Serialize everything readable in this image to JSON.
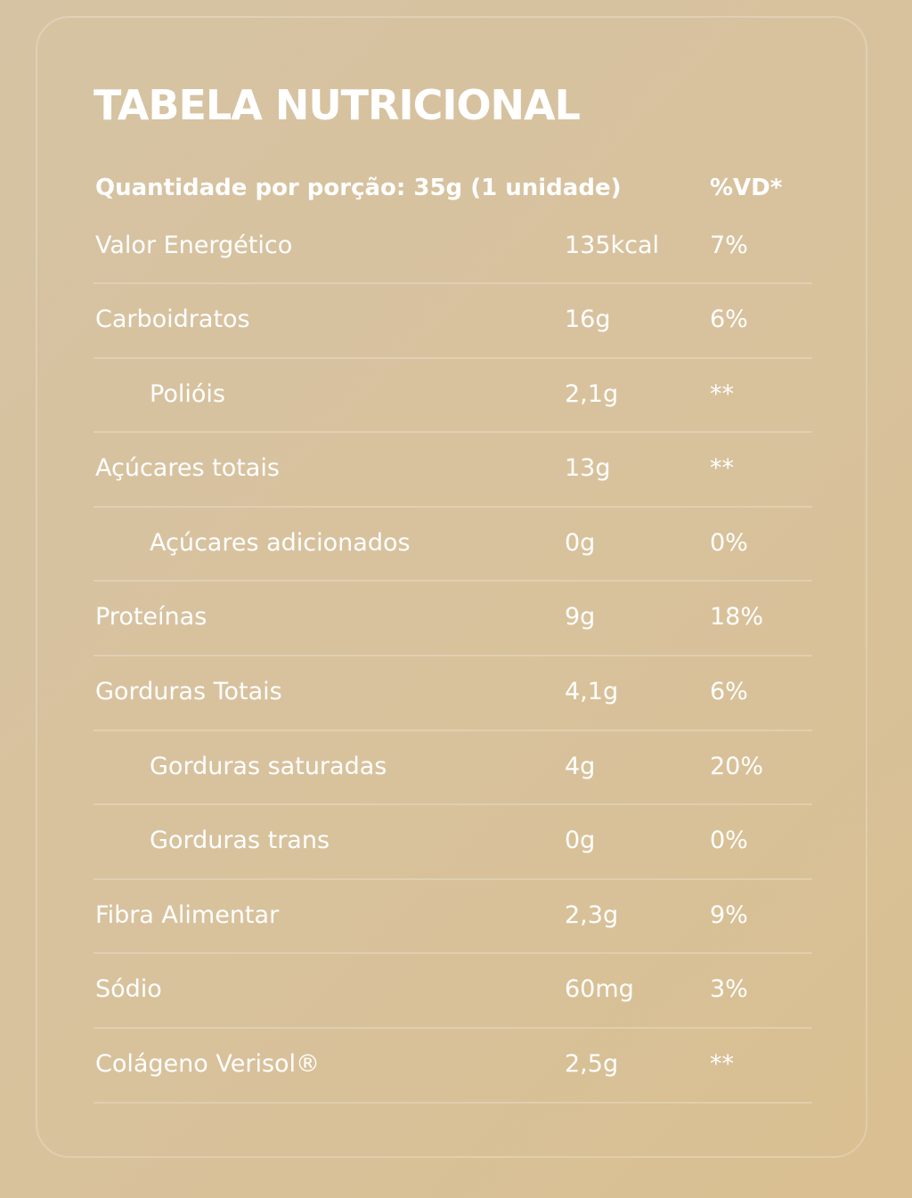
{
  "title": "TABELA NUTRICIONAL",
  "header": {
    "portion": "Quantidade por porção: 35g (1 unidade)",
    "vd": "%VD*"
  },
  "rows": [
    {
      "name": "Valor Energético",
      "amount": "135kcal",
      "vd": "7%"
    },
    {
      "name": "Carboidratos",
      "amount": "16g",
      "vd": "6%"
    },
    {
      "name": "Polióis",
      "amount": "2,1g",
      "vd": "**"
    },
    {
      "name": "Açúcares totais",
      "amount": "13g",
      "vd": "**"
    },
    {
      "name": "Açúcares adicionados",
      "amount": "0g",
      "vd": "0%"
    },
    {
      "name": "Proteínas",
      "amount": "9g",
      "vd": "18%"
    },
    {
      "name": "Gorduras Totais",
      "amount": "4,1g",
      "vd": "6%"
    },
    {
      "name": "Gorduras saturadas",
      "amount": "4g",
      "vd": "20%"
    },
    {
      "name": "Gorduras trans",
      "amount": "0g",
      "vd": "0%"
    },
    {
      "name": "Fibra Alimentar",
      "amount": "2,3g",
      "vd": "9%"
    },
    {
      "name": "Sódio",
      "amount": "60mg",
      "vd": "3%"
    },
    {
      "name": "Colágeno Verisol®",
      "amount": "2,5g",
      "vd": "**"
    }
  ],
  "colors": {
    "text": "#ffffff",
    "background_start": "#d6c3a3",
    "background_end": "#d9bf91"
  }
}
